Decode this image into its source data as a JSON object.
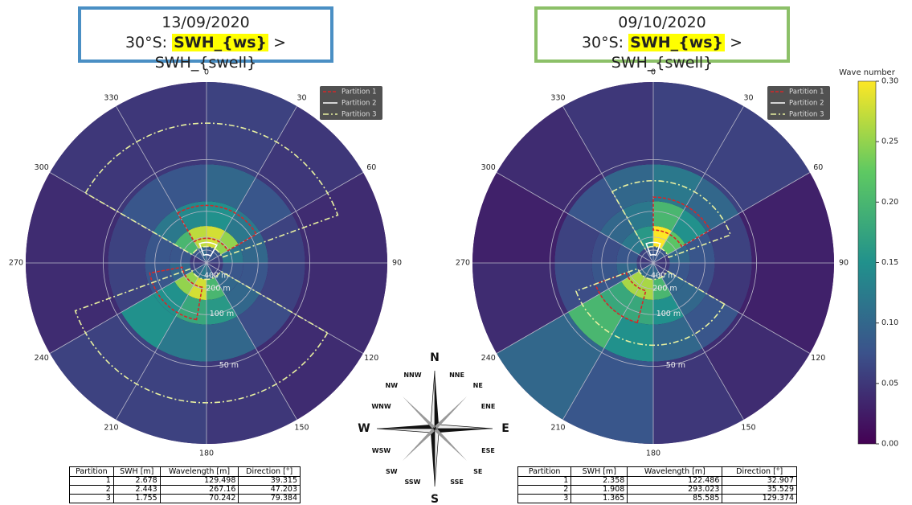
{
  "polar": {
    "rlim": [
      0,
      0.22
    ],
    "angle_ticks": [
      0,
      30,
      60,
      90,
      120,
      150,
      180,
      210,
      240,
      270,
      300,
      330
    ],
    "radial_ticks": [
      {
        "value": 400,
        "label": "400 m"
      },
      {
        "value": 200,
        "label": "200 m"
      },
      {
        "value": 100,
        "label": "100 m"
      },
      {
        "value": 50,
        "label": "50 m"
      }
    ],
    "legend": [
      {
        "name": "Partition 1",
        "color": "#d62728",
        "dash": "4 2"
      },
      {
        "name": "Partition 2",
        "color": "#ffffff",
        "dash": "none"
      },
      {
        "name": "Partition 3",
        "color": "#e8f0a0",
        "dash": "7 3 2 3"
      }
    ]
  },
  "panels": [
    {
      "title_date": "13/09/2020",
      "title_prefix": "30°S:",
      "title_highlight": "SWH_{ws}",
      "title_suffix": "> SWH_{swell}",
      "border_color": "#4a8fc4",
      "spectrum": {
        "direction_edges": [
          0,
          30,
          60,
          90,
          120,
          150,
          180,
          210,
          240,
          270,
          300,
          330,
          360
        ],
        "k_edges": [
          0,
          0.02,
          0.045,
          0.075,
          0.12,
          0.22
        ],
        "values": [
          [
            0.08,
            0.28,
            0.15,
            0.1,
            0.06
          ],
          [
            0.08,
            0.25,
            0.12,
            0.08,
            0.05
          ],
          [
            0.06,
            0.12,
            0.1,
            0.06,
            0.04
          ],
          [
            0.05,
            0.08,
            0.08,
            0.06,
            0.04
          ],
          [
            0.06,
            0.1,
            0.1,
            0.07,
            0.04
          ],
          [
            0.1,
            0.2,
            0.16,
            0.1,
            0.05
          ],
          [
            0.12,
            0.28,
            0.18,
            0.12,
            0.06
          ],
          [
            0.1,
            0.25,
            0.15,
            0.15,
            0.06
          ],
          [
            0.06,
            0.1,
            0.08,
            0.06,
            0.04
          ],
          [
            0.05,
            0.08,
            0.08,
            0.06,
            0.04
          ],
          [
            0.08,
            0.2,
            0.12,
            0.08,
            0.05
          ],
          [
            0.1,
            0.27,
            0.14,
            0.08,
            0.05
          ]
        ]
      },
      "outlines": [
        [
          [
            330,
            60,
            0.03,
            0.07
          ],
          [
            190,
            260,
            0.03,
            0.07
          ]
        ],
        [
          [
            340,
            30,
            0.01,
            0.025
          ]
        ],
        [
          [
            300,
            70,
            0.02,
            0.17
          ],
          [
            120,
            250,
            0.02,
            0.17
          ]
        ]
      ],
      "table": {
        "header": [
          "Partition",
          "SWH [m]",
          "Wavelength [m]",
          "Direction [°]"
        ],
        "rows": [
          [
            1,
            2.678,
            129.498,
            39.315
          ],
          [
            2,
            2.443,
            267.16,
            47.203
          ],
          [
            3,
            1.755,
            70.242,
            79.384
          ]
        ]
      }
    },
    {
      "title_date": "09/10/2020",
      "title_prefix": "30°S:",
      "title_highlight": "SWH_{ws}",
      "title_suffix": "> SWH_{swell}",
      "border_color": "#8cc068",
      "spectrum": {
        "direction_edges": [
          0,
          30,
          60,
          90,
          120,
          150,
          180,
          210,
          240,
          270,
          300,
          330,
          360
        ],
        "k_edges": [
          0,
          0.02,
          0.045,
          0.075,
          0.12,
          0.22
        ],
        "values": [
          [
            0.08,
            0.3,
            0.2,
            0.12,
            0.06
          ],
          [
            0.08,
            0.22,
            0.15,
            0.1,
            0.06
          ],
          [
            0.05,
            0.1,
            0.08,
            0.06,
            0.03
          ],
          [
            0.05,
            0.08,
            0.07,
            0.05,
            0.03
          ],
          [
            0.06,
            0.1,
            0.1,
            0.08,
            0.04
          ],
          [
            0.1,
            0.2,
            0.15,
            0.1,
            0.05
          ],
          [
            0.1,
            0.26,
            0.18,
            0.15,
            0.08
          ],
          [
            0.1,
            0.26,
            0.18,
            0.2,
            0.1
          ],
          [
            0.06,
            0.1,
            0.08,
            0.07,
            0.04
          ],
          [
            0.05,
            0.08,
            0.07,
            0.06,
            0.03
          ],
          [
            0.06,
            0.12,
            0.1,
            0.08,
            0.04
          ],
          [
            0.08,
            0.16,
            0.12,
            0.1,
            0.05
          ]
        ]
      },
      "outlines": [
        [
          [
            0,
            60,
            0.04,
            0.08
          ],
          [
            195,
            250,
            0.035,
            0.075
          ]
        ],
        [
          [
            340,
            20,
            0.01,
            0.025
          ]
        ],
        [
          [
            330,
            70,
            0.02,
            0.1
          ],
          [
            120,
            250,
            0.02,
            0.1
          ]
        ]
      ],
      "table": {
        "header": [
          "Partition",
          "SWH [m]",
          "Wavelength [m]",
          "Direction [°]"
        ],
        "rows": [
          [
            1,
            2.358,
            122.486,
            32.907
          ],
          [
            2,
            1.908,
            293.023,
            35.529
          ],
          [
            3,
            1.365,
            85.585,
            129.374
          ]
        ]
      }
    }
  ],
  "colorbar": {
    "label": "Wave number",
    "lim": [
      0,
      0.3
    ],
    "ticks": [
      {
        "value": 0,
        "label": "0.00"
      },
      {
        "value": 0.05,
        "label": "0.05"
      },
      {
        "value": 0.1,
        "label": "0.10"
      },
      {
        "value": 0.15,
        "label": "0.15"
      },
      {
        "value": 0.2,
        "label": "0.20"
      },
      {
        "value": 0.25,
        "label": "0.25"
      },
      {
        "value": 0.3,
        "label": "0.30"
      }
    ]
  },
  "compass": {
    "labels": [
      "N",
      "NNE",
      "NE",
      "ENE",
      "E",
      "ESE",
      "SE",
      "SSE",
      "S",
      "SSW",
      "SW",
      "WSW",
      "W",
      "WNW",
      "NW",
      "NNW"
    ]
  }
}
